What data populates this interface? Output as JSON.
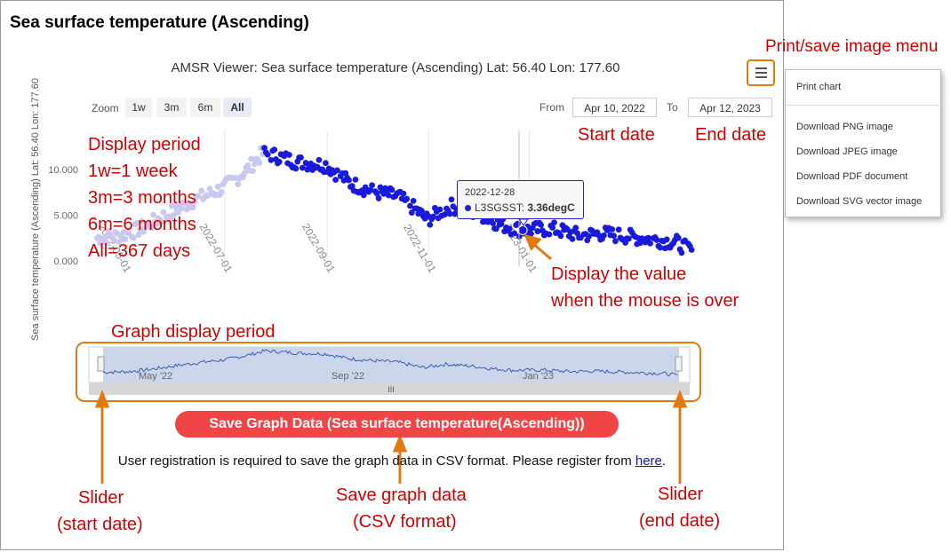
{
  "page": {
    "title": "Sea surface temperature (Ascending)"
  },
  "chart": {
    "title": "AMSR Viewer: Sea surface temperature (Ascending) Lat: 56.40 Lon: 177.60",
    "ylabel": "Sea surface temperature (Ascending) Lat: 56.40 Lon: 177.60",
    "zoom_label": "Zoom",
    "zoom_buttons": [
      "1w",
      "3m",
      "6m",
      "All"
    ],
    "active_zoom": "All",
    "from_label": "From",
    "from_value": "Apr 10, 2022",
    "to_label": "To",
    "to_value": "Apr 12, 2023",
    "menu_icon": "hamburger-icon"
  },
  "menu": {
    "items": [
      "Print chart",
      "Download PNG image",
      "Download JPEG image",
      "Download PDF document",
      "Download SVG vector image"
    ]
  },
  "tooltip": {
    "date": "2022-12-28",
    "series": "L3SGSST",
    "value": "3.36degC"
  },
  "navigator": {
    "labels": [
      "May '22",
      "Sep '22",
      "Jan '23"
    ],
    "handle_glyph": "III"
  },
  "save": {
    "button_label": "Save Graph Data (Sea surface temperature(Ascending))",
    "note_text": "User registration is required to save the graph data in CSV format. Please register from ",
    "note_link": "here",
    "note_end": "."
  },
  "annotations": {
    "print_menu": "Print/save image menu",
    "display_period": [
      "Display period",
      "1w=1 week",
      "3m=3 months",
      "6m=6 months",
      "All=367 days"
    ],
    "start_date": "Start date",
    "end_date": "End date",
    "display_value": [
      "Display the value",
      "when the mouse is over"
    ],
    "graph_period": "Graph display period",
    "slider_start": [
      "Slider",
      "(start date)"
    ],
    "save_data": [
      "Save graph data",
      "(CSV format)"
    ],
    "slider_end": [
      "Slider",
      "(end date)"
    ]
  },
  "colors": {
    "series": "#1a1adc",
    "faded": "#c8c8f0",
    "accent": "#e07a10",
    "anno": "#d10000",
    "button": "#f04545"
  },
  "chart_data": {
    "type": "scatter",
    "xlabel": "",
    "ylabel": "Sea surface temperature (Ascending) Lat: 56.40 Lon: 177.60",
    "y_ticks": [
      "0.000",
      "5.000",
      "10.000"
    ],
    "ylim": [
      0,
      12
    ],
    "x_ticks": [
      "2022-05-01",
      "2022-07-01",
      "2022-09-01",
      "2022-11-01",
      "2023-01-01"
    ],
    "series": [
      {
        "name": "L3SGSST",
        "x": [
          "2022-04-15",
          "2022-05-01",
          "2022-05-15",
          "2022-06-01",
          "2022-06-15",
          "2022-07-01",
          "2022-07-15",
          "2022-07-25",
          "2022-08-01",
          "2022-08-15",
          "2022-09-01",
          "2022-09-15",
          "2022-10-01",
          "2022-10-15",
          "2022-11-01",
          "2022-11-15",
          "2022-12-01",
          "2022-12-15",
          "2022-12-28",
          "2023-01-15",
          "2023-02-01",
          "2023-02-15",
          "2023-03-01",
          "2023-03-15",
          "2023-04-01",
          "2023-04-10"
        ],
        "y": [
          2.5,
          2.8,
          3.8,
          5.5,
          6.8,
          8.0,
          10.0,
          11.8,
          11.5,
          10.8,
          10.5,
          8.5,
          7.5,
          7.0,
          4.5,
          6.0,
          5.2,
          4.0,
          3.36,
          3.5,
          2.8,
          3.0,
          2.7,
          2.4,
          2.0,
          1.0
        ]
      }
    ]
  }
}
